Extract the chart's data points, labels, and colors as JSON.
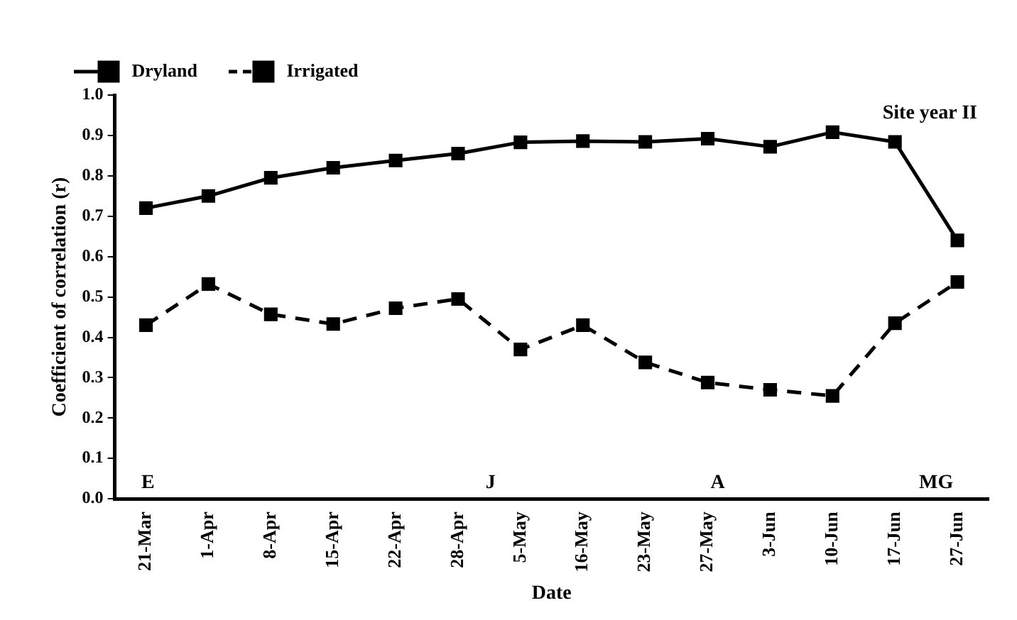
{
  "chart_data": {
    "type": "line",
    "xlabel": "Date",
    "ylabel": "Coefficient of correlation (r)",
    "categories": [
      "21-Mar",
      "1-Apr",
      "8-Apr",
      "15-Apr",
      "22-Apr",
      "28-Apr",
      "5-May",
      "16-May",
      "23-May",
      "27-May",
      "3-Jun",
      "10-Jun",
      "17-Jun",
      "27-Jun"
    ],
    "series": [
      {
        "name": "Dryland",
        "color": "#000000",
        "line_style": "solid",
        "values": [
          0.72,
          0.75,
          0.795,
          0.82,
          0.838,
          0.855,
          0.883,
          0.886,
          0.884,
          0.892,
          0.872,
          0.908,
          0.884,
          0.64
        ]
      },
      {
        "name": "Irrigated",
        "color": "#000000",
        "line_style": "dashed",
        "values": [
          0.43,
          0.532,
          0.457,
          0.433,
          0.472,
          0.495,
          0.37,
          0.43,
          0.338,
          0.288,
          0.27,
          0.255,
          0.435,
          0.537
        ]
      }
    ],
    "ylim": [
      0,
      1
    ],
    "yticks": [
      {
        "value": 0,
        "label": "0.0"
      },
      {
        "value": 0.1,
        "label": "0.1"
      },
      {
        "value": 0.2,
        "label": "0.2"
      },
      {
        "value": 0.3,
        "label": "0.3"
      },
      {
        "value": 0.4,
        "label": "0.4"
      },
      {
        "value": 0.5,
        "label": "0.5"
      },
      {
        "value": 0.6,
        "label": "0.6"
      },
      {
        "value": 0.7,
        "label": "0.7"
      },
      {
        "value": 0.8,
        "label": "0.8"
      },
      {
        "value": 0.9,
        "label": "0.9"
      },
      {
        "value": 1,
        "label": "1.0"
      }
    ],
    "annotations": [
      "Site year II",
      "E",
      "J",
      "A",
      "MG"
    ],
    "grid": false,
    "legend": "top left",
    "marker": "square"
  }
}
